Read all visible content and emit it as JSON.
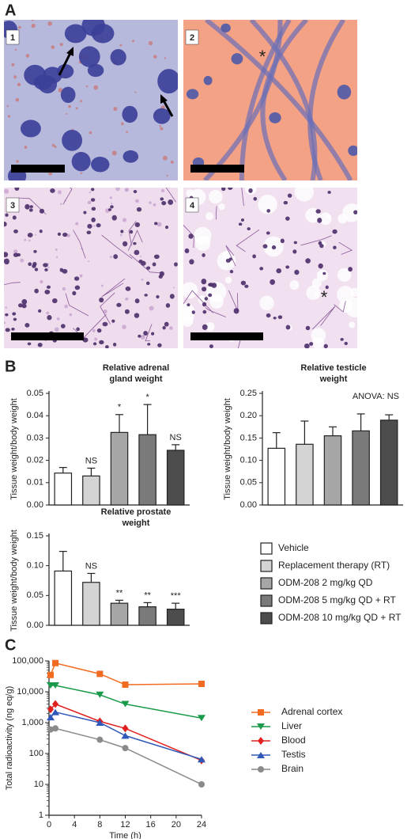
{
  "panel_labels": [
    "A",
    "B",
    "C"
  ],
  "images": [
    {
      "label": "1"
    },
    {
      "label": "2",
      "annotation": "*"
    },
    {
      "label": "3"
    },
    {
      "label": "4",
      "annotation": "*"
    }
  ],
  "legend": [
    {
      "name": "Vehicle",
      "color": "#ffffff"
    },
    {
      "name": "Replacement therapy (RT)",
      "color": "#d4d4d4"
    },
    {
      "name": "ODM-208 2 mg/kg QD",
      "color": "#a6a6a6"
    },
    {
      "name": "ODM-208 5 mg/kg QD + RT",
      "color": "#7a7a7a"
    },
    {
      "name": "ODM-208 10 mg/kg QD + RT",
      "color": "#4d4d4d"
    }
  ],
  "chart_data": [
    {
      "type": "bar",
      "title": [
        "Relative adrenal",
        "gland weight"
      ],
      "y_label": "Tissue weight/body weight",
      "values": [
        0.0143,
        0.013,
        0.0325,
        0.0315,
        0.0245
      ],
      "errors": [
        0.0025,
        0.0035,
        0.008,
        0.0135,
        0.0025
      ],
      "significance": [
        null,
        "NS",
        "*",
        "*",
        "NS"
      ],
      "ylim": [
        0,
        0.05
      ],
      "yticks": [
        {
          "value": 0,
          "label": "0.00"
        },
        {
          "value": 0.01,
          "label": "0.01"
        },
        {
          "value": 0.02,
          "label": "0.02"
        },
        {
          "value": 0.03,
          "label": "0.03"
        },
        {
          "value": 0.04,
          "label": "0.04"
        },
        {
          "value": 0.05,
          "label": "0.05"
        }
      ]
    },
    {
      "type": "bar",
      "title": [
        "Relative testicle",
        "weight"
      ],
      "y_label": "Tissue weight/body weight",
      "annotation": "ANOVA: NS",
      "values": [
        0.127,
        0.136,
        0.155,
        0.166,
        0.19
      ],
      "errors": [
        0.035,
        0.052,
        0.02,
        0.038,
        0.012
      ],
      "ylim": [
        0,
        0.25
      ],
      "yticks": [
        {
          "value": 0,
          "label": "0.00"
        },
        {
          "value": 0.05,
          "label": "0.05"
        },
        {
          "value": 0.1,
          "label": "0.10"
        },
        {
          "value": 0.15,
          "label": "0.15"
        },
        {
          "value": 0.2,
          "label": "0.20"
        },
        {
          "value": 0.25,
          "label": "0.25"
        }
      ]
    },
    {
      "type": "bar",
      "title": [
        "Relative prostate",
        "weight"
      ],
      "y_label": "Tissue weight/body weight",
      "values": [
        0.091,
        0.072,
        0.037,
        0.031,
        0.027
      ],
      "errors": [
        0.033,
        0.015,
        0.005,
        0.007,
        0.01
      ],
      "significance": [
        null,
        "NS",
        "**",
        "**",
        "***"
      ],
      "ylim": [
        0,
        0.15
      ],
      "yticks": [
        {
          "value": 0,
          "label": "0.00"
        },
        {
          "value": 0.05,
          "label": "0.05"
        },
        {
          "value": 0.1,
          "label": "0.10"
        },
        {
          "value": 0.15,
          "label": "0.15"
        }
      ]
    },
    {
      "type": "line",
      "y_label": "Total radioactivity (ng eq/g)",
      "x_label": "Time (h)",
      "log_y": true,
      "x": [
        0.25,
        1,
        8,
        12,
        24
      ],
      "series": [
        {
          "name": "Adrenal cortex",
          "color": "#f26b21",
          "marker": "square",
          "values": [
            35000,
            85000,
            38000,
            17000,
            18000
          ]
        },
        {
          "name": "Liver",
          "color": "#1a9a4a",
          "marker": "triangle-down",
          "values": [
            16000,
            16000,
            8000,
            4000,
            1400
          ]
        },
        {
          "name": "Blood",
          "color": "#e0201f",
          "marker": "diamond",
          "values": [
            2700,
            4000,
            1100,
            650,
            60
          ]
        },
        {
          "name": "Testis",
          "color": "#2f58b8",
          "marker": "triangle-up",
          "values": [
            1500,
            2200,
            1000,
            380,
            65
          ]
        },
        {
          "name": "Brain",
          "color": "#8a8a8a",
          "marker": "circle",
          "values": [
            600,
            650,
            280,
            150,
            10
          ]
        }
      ],
      "xlim": [
        0,
        24
      ],
      "xticks": [
        0,
        4,
        8,
        12,
        16,
        20,
        24
      ],
      "ylim": [
        1,
        100000
      ],
      "yticks": [
        1,
        10,
        100,
        {
          "value": 1000,
          "label": "1,000"
        },
        {
          "value": 10000,
          "label": "10,000"
        },
        {
          "value": 100000,
          "label": "100,000"
        }
      ]
    }
  ]
}
